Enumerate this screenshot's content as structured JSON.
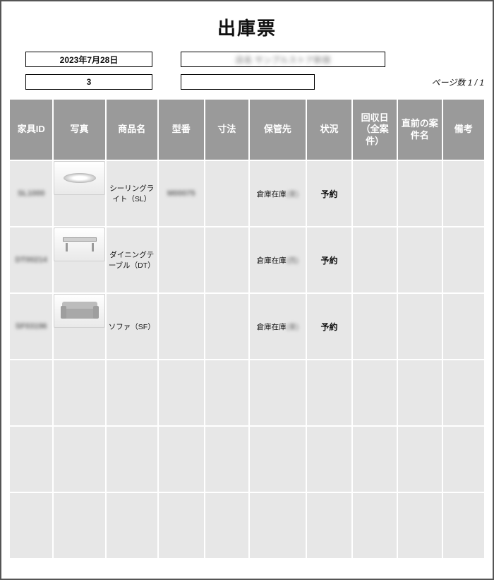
{
  "title": "出庫票",
  "header": {
    "date": "2023年7月28日",
    "name_redacted": "店名 サンプルストア新宿",
    "count": "3",
    "blank": ""
  },
  "page_label": "ページ数",
  "page_current": "1",
  "page_sep": " / ",
  "page_total": "1",
  "columns": [
    "家具ID",
    "写真",
    "商品名",
    "型番",
    "寸法",
    "保管先",
    "状況",
    "回収日（全案件）",
    "直前の案件名",
    "備考"
  ],
  "rows": [
    {
      "id_blur": "SL1000",
      "photo": "lamp",
      "name": "シーリングライト（SL）",
      "model_blur": "M00075",
      "dim": "",
      "storage_base": "倉庫在庫",
      "storage_blur": "(東)",
      "status": "予約"
    },
    {
      "id_blur": "DT00214",
      "photo": "table",
      "name": "ダイニングテーブル（DT）",
      "model_blur": "",
      "dim": "",
      "storage_base": "倉庫在庫",
      "storage_blur": "(西)",
      "status": "予約"
    },
    {
      "id_blur": "SF03196",
      "photo": "sofa",
      "name": "ソファ（SF）",
      "model_blur": "",
      "dim": "",
      "storage_base": "倉庫在庫",
      "storage_blur": "(東)",
      "status": "予約"
    }
  ],
  "empty_rows": 3,
  "colors": {
    "header_bg": "#9a9a9a",
    "header_fg": "#ffffff",
    "cell_bg": "#e7e7e7",
    "border": "#ffffff",
    "page_border": "#555555"
  }
}
